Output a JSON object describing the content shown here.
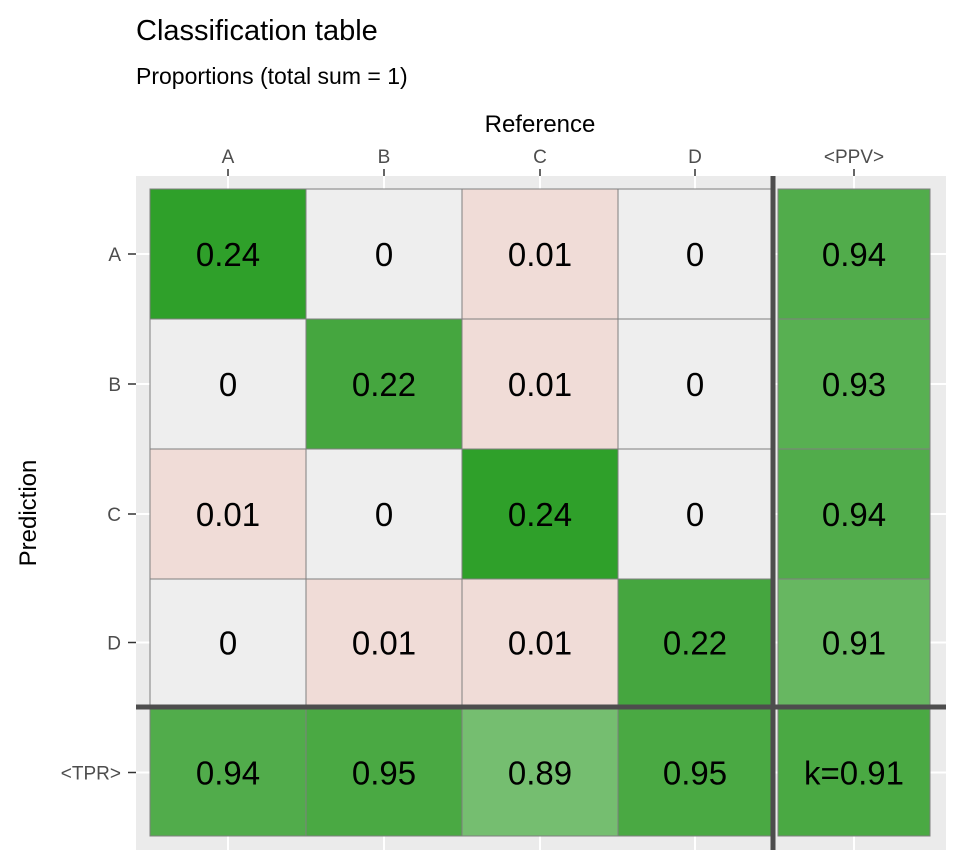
{
  "chart_data": {
    "type": "heatmap",
    "title": "Classification table",
    "subtitle": "Proportions (total sum = 1)",
    "xlabel": "Reference",
    "ylabel": "Prediction",
    "x_categories": [
      "A",
      "B",
      "C",
      "D",
      "<PPV>"
    ],
    "y_categories": [
      "A",
      "B",
      "C",
      "D",
      "<TPR>"
    ],
    "matrix": [
      [
        0.24,
        0,
        0.01,
        0
      ],
      [
        0,
        0.22,
        0.01,
        0
      ],
      [
        0.01,
        0,
        0.24,
        0
      ],
      [
        0,
        0.01,
        0.01,
        0.22
      ]
    ],
    "cell_labels": [
      [
        "0.24",
        "0",
        "0.01",
        "0"
      ],
      [
        "0",
        "0.22",
        "0.01",
        "0"
      ],
      [
        "0.01",
        "0",
        "0.24",
        "0"
      ],
      [
        "0",
        "0.01",
        "0.01",
        "0.22"
      ]
    ],
    "ppv": [
      0.94,
      0.93,
      0.94,
      0.91
    ],
    "ppv_labels": [
      "0.94",
      "0.93",
      "0.94",
      "0.91"
    ],
    "tpr": [
      0.94,
      0.95,
      0.89,
      0.95
    ],
    "tpr_labels": [
      "0.94",
      "0.95",
      "0.89",
      "0.95"
    ],
    "kappa_label": "k=0.91",
    "colors": {
      "panel_background": "#ebebeb",
      "zero_cell": "#eeeeee",
      "misclass_cell": "#f0dcd7",
      "diag_high": "#2fa02a",
      "diag_mid": "#45a63f",
      "summary_base": "#4aa943",
      "separator": "#4d4d4d",
      "cell_border": "#7f7f7f",
      "grid_line": "#ffffff"
    }
  }
}
